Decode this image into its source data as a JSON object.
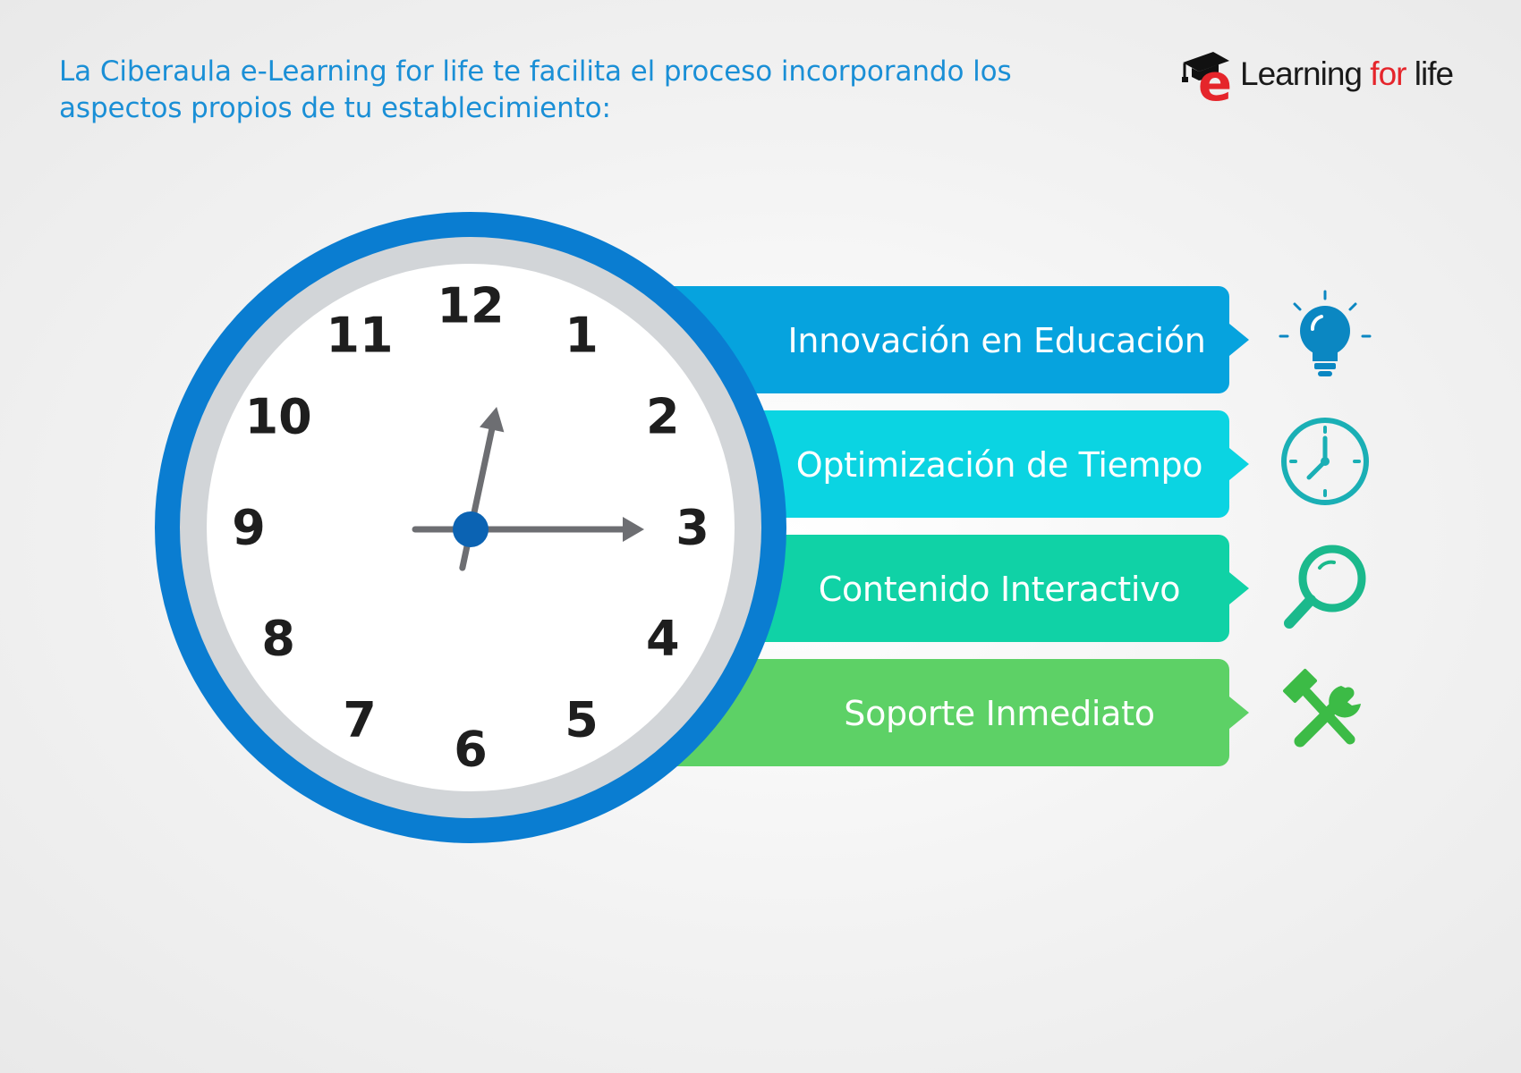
{
  "header": {
    "line1": "La Ciberaula e-Learning for life te facilita el proceso incorporando los",
    "line2": "aspectos propios de tu establecimiento:"
  },
  "logo": {
    "letter": "e",
    "word_learning": "Learning",
    "word_for": "for",
    "word_life": "life"
  },
  "clock": {
    "numbers": [
      "12",
      "1",
      "2",
      "3",
      "4",
      "5",
      "6",
      "7",
      "8",
      "9",
      "10",
      "11"
    ],
    "hour_hand_hour": 0.4,
    "minute_hand_minutes": 15
  },
  "banners": [
    {
      "label": "Innovación en Educación",
      "color": "#06a3de",
      "icon": "lightbulb-icon",
      "icon_color": "#0b87c2"
    },
    {
      "label": "Optimización de Tiempo",
      "color": "#0bd4e2",
      "icon": "clock-icon",
      "icon_color": "#1aafb5"
    },
    {
      "label": "Contenido Interactivo",
      "color": "#10d2a6",
      "icon": "magnifier-icon",
      "icon_color": "#1bb98c"
    },
    {
      "label": "Soporte Inmediato",
      "color": "#5dd166",
      "icon": "tools-icon",
      "icon_color": "#3cbb46"
    }
  ],
  "colors": {
    "headline": "#1a8fd6",
    "clock_outer_ring": "#0a7dd1",
    "clock_bezel": "#d2d5d8",
    "clock_face": "#ffffff",
    "hands": "#6d6e72",
    "hub": "#0b63b3"
  }
}
